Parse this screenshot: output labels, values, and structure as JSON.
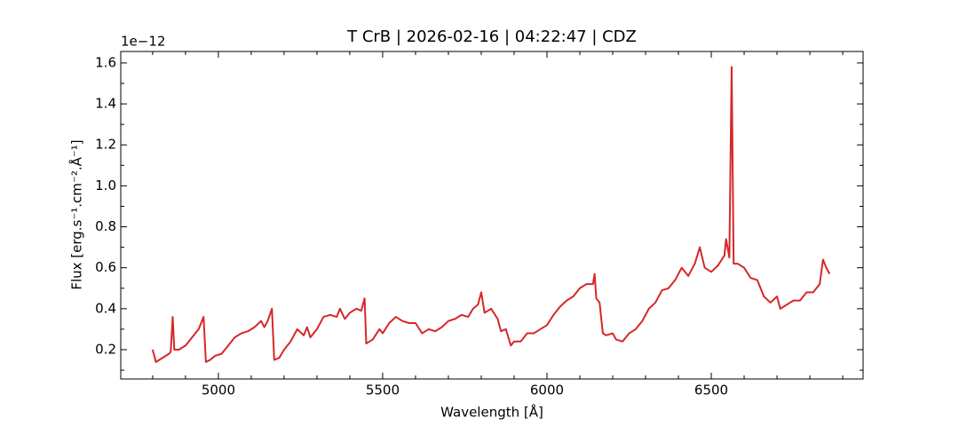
{
  "chart_data": {
    "type": "line",
    "title": "T CrB | 2026-02-16 | 04:22:47 | CDZ",
    "x_label": "Wavelength [Å]",
    "y_label": "Flux [erg.s⁻¹.cm⁻².Å⁻¹]",
    "y_offset_label": "1e−12",
    "xlim": [
      4703,
      6962
    ],
    "ylim": [
      0.057,
      1.656
    ],
    "xticks": [
      5000,
      5500,
      6000,
      6500
    ],
    "yticks": [
      {
        "value": 0.2,
        "label": "0.2"
      },
      {
        "value": 0.4,
        "label": "0.4"
      },
      {
        "value": 0.6,
        "label": "0.6"
      },
      {
        "value": 0.8,
        "label": "0.8"
      },
      {
        "value": 1.0,
        "label": "1.0"
      },
      {
        "value": 1.2,
        "label": "1.2"
      },
      {
        "value": 1.4,
        "label": "1.4"
      },
      {
        "value": 1.6,
        "label": "1.6"
      }
    ],
    "xminorticks": [
      4800,
      4900,
      5100,
      5200,
      5300,
      5400,
      5600,
      5700,
      5800,
      5900,
      6100,
      6200,
      6300,
      6400,
      6600,
      6700,
      6800,
      6900
    ],
    "yminorticks": [
      0.1,
      0.3,
      0.5,
      0.7,
      0.9,
      1.1,
      1.3,
      1.5
    ],
    "grid": false,
    "x": [
      4800,
      4810,
      4830,
      4850,
      4855,
      4861,
      4866,
      4880,
      4900,
      4920,
      4940,
      4955,
      4962,
      4975,
      4990,
      5010,
      5030,
      5050,
      5070,
      5090,
      5110,
      5130,
      5140,
      5150,
      5163,
      5170,
      5185,
      5200,
      5220,
      5240,
      5260,
      5270,
      5280,
      5300,
      5320,
      5340,
      5360,
      5370,
      5385,
      5400,
      5420,
      5435,
      5445,
      5450,
      5470,
      5490,
      5500,
      5520,
      5540,
      5560,
      5580,
      5600,
      5620,
      5640,
      5660,
      5680,
      5700,
      5720,
      5740,
      5760,
      5775,
      5790,
      5800,
      5810,
      5830,
      5850,
      5860,
      5875,
      5890,
      5900,
      5920,
      5940,
      5960,
      5980,
      6000,
      6020,
      6040,
      6060,
      6080,
      6100,
      6120,
      6140,
      6145,
      6150,
      6160,
      6170,
      6180,
      6200,
      6210,
      6230,
      6250,
      6270,
      6290,
      6310,
      6330,
      6350,
      6370,
      6390,
      6410,
      6430,
      6450,
      6465,
      6480,
      6500,
      6520,
      6540,
      6545,
      6555,
      6562,
      6568,
      6580,
      6600,
      6620,
      6640,
      6660,
      6680,
      6700,
      6710,
      6730,
      6750,
      6770,
      6790,
      6810,
      6830,
      6840,
      6850,
      6860
    ],
    "series": [
      {
        "color": "#d62728",
        "values": [
          0.2,
          0.14,
          0.16,
          0.18,
          0.19,
          0.36,
          0.2,
          0.2,
          0.22,
          0.26,
          0.3,
          0.36,
          0.14,
          0.15,
          0.17,
          0.18,
          0.22,
          0.26,
          0.28,
          0.29,
          0.31,
          0.34,
          0.31,
          0.34,
          0.4,
          0.15,
          0.16,
          0.2,
          0.24,
          0.3,
          0.27,
          0.31,
          0.26,
          0.3,
          0.36,
          0.37,
          0.36,
          0.4,
          0.35,
          0.38,
          0.4,
          0.39,
          0.45,
          0.23,
          0.25,
          0.3,
          0.28,
          0.33,
          0.36,
          0.34,
          0.33,
          0.33,
          0.28,
          0.3,
          0.29,
          0.31,
          0.34,
          0.35,
          0.37,
          0.36,
          0.4,
          0.42,
          0.48,
          0.38,
          0.4,
          0.35,
          0.29,
          0.3,
          0.22,
          0.24,
          0.24,
          0.28,
          0.28,
          0.3,
          0.32,
          0.37,
          0.41,
          0.44,
          0.46,
          0.5,
          0.52,
          0.52,
          0.57,
          0.45,
          0.43,
          0.28,
          0.27,
          0.28,
          0.25,
          0.24,
          0.28,
          0.3,
          0.34,
          0.4,
          0.43,
          0.49,
          0.5,
          0.54,
          0.6,
          0.56,
          0.62,
          0.7,
          0.6,
          0.58,
          0.61,
          0.66,
          0.74,
          0.65,
          1.58,
          0.62,
          0.62,
          0.6,
          0.55,
          0.54,
          0.46,
          0.43,
          0.46,
          0.4,
          0.42,
          0.44,
          0.44,
          0.48,
          0.48,
          0.52,
          0.64,
          0.6,
          0.57
        ]
      }
    ]
  }
}
